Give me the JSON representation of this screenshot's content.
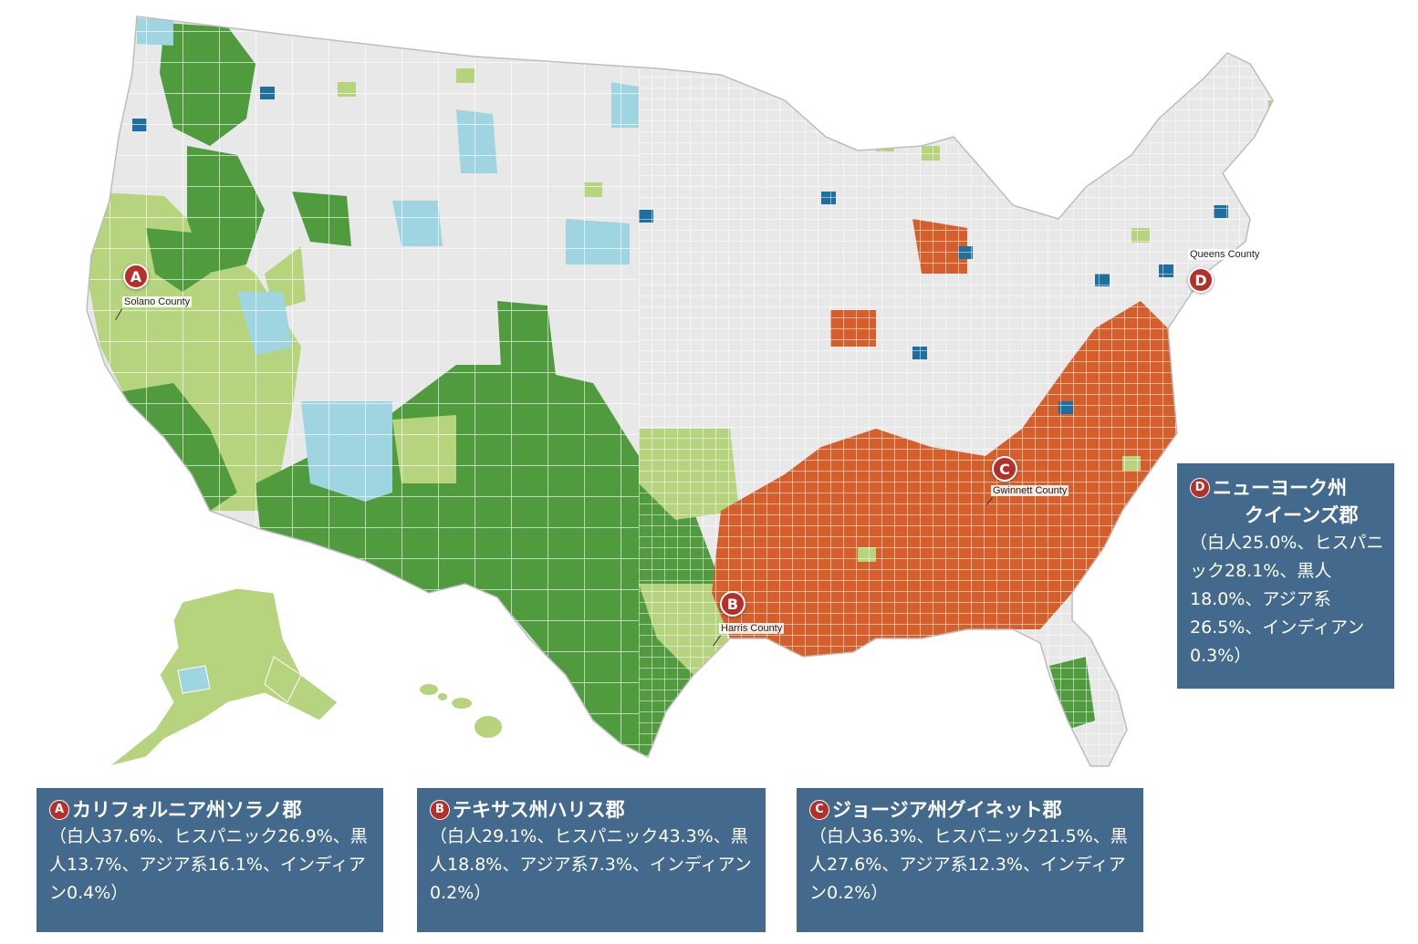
{
  "colors": {
    "dark_green": "#4f9b3e",
    "light_green": "#b6d47e",
    "light_blue": "#9ed5e0",
    "dark_blue": "#1e6e9e",
    "orange": "#d45f2b",
    "grey": "#e8e8e8",
    "box_bg": "#436a8c",
    "marker_red": "#b5302a"
  },
  "markers": [
    {
      "id": "a",
      "letter": "A",
      "county": "Solano County"
    },
    {
      "id": "b",
      "letter": "B",
      "county": "Harris County"
    },
    {
      "id": "c",
      "letter": "C",
      "county": "Gwinnett County"
    },
    {
      "id": "d",
      "letter": "D",
      "county": "Queens County"
    }
  ],
  "boxes": {
    "a": {
      "letter": "A",
      "title": "カリフォルニア州ソラノ郡",
      "detail": "（白人37.6%、ヒスパニック26.9%、黒人13.7%、アジア系16.1%、インディアン0.4%）"
    },
    "b": {
      "letter": "B",
      "title": "テキサス州ハリス郡",
      "detail": "（白人29.1%、ヒスパニック43.3%、黒人18.8%、アジア系7.3%、インディアン0.2%）"
    },
    "c": {
      "letter": "C",
      "title": "ジョージア州グイネット郡",
      "detail": "（白人36.3%、ヒスパニック21.5%、黒人27.6%、アジア系12.3%、インディアン0.2%）"
    },
    "d": {
      "letter": "D",
      "title_line1": "ニューヨーク州",
      "title_line2": "クイーンズ郡",
      "detail": "（白人25.0%、ヒスパニック28.1%、黒人18.0%、アジア系26.5%、インディアン0.3%）"
    }
  }
}
